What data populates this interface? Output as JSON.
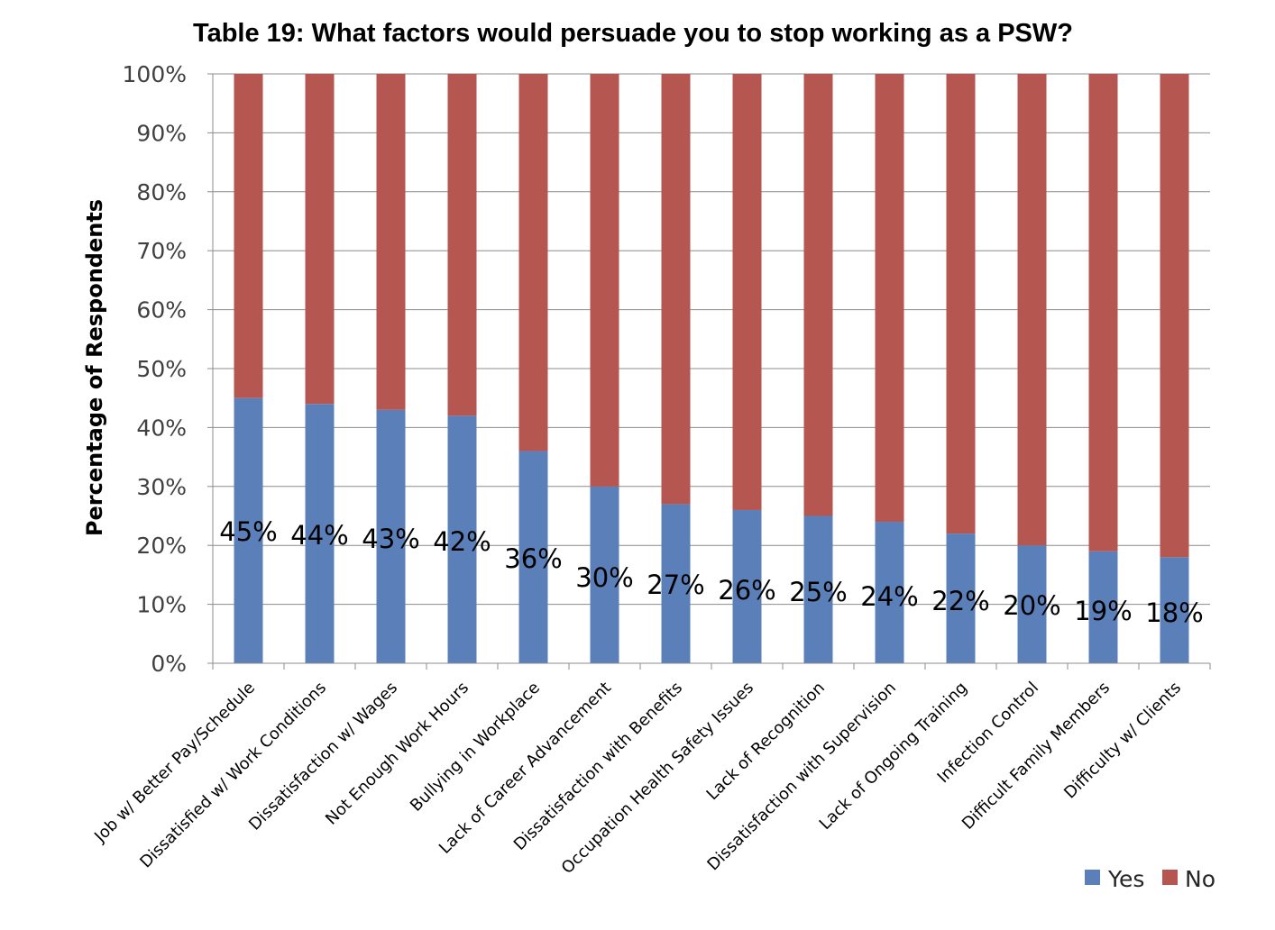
{
  "chart_data": {
    "type": "bar",
    "stacked": true,
    "title": "Table 19: What factors would persuade you to stop working as a PSW?",
    "ylabel": "Percentage of Respondents",
    "xlabel": "",
    "ylim": [
      0,
      100
    ],
    "yticks": [
      "0%",
      "10%",
      "20%",
      "30%",
      "40%",
      "50%",
      "60%",
      "70%",
      "80%",
      "90%",
      "100%"
    ],
    "grid": true,
    "legend_position": "bottom-right",
    "categories": [
      "Job w/ Better Pay/Schedule",
      "Dissatisfied w/ Work Conditions",
      "Dissatisfaction w/ Wages",
      "Not Enough Work Hours",
      "Bullying in Workplace",
      "Lack of Career Advancement",
      "Dissatisfaction with Benefits",
      "Occupation Health Safety Issues",
      "Lack of Recognition",
      "Dissatisfaction with Supervision",
      "Lack of Ongoing Training",
      "Infection Control",
      "Difficult Family Members",
      "Difficulty w/ Clients"
    ],
    "series": [
      {
        "name": "Yes",
        "color": "#5b80b9",
        "values": [
          45,
          44,
          43,
          42,
          36,
          30,
          27,
          26,
          25,
          24,
          22,
          20,
          19,
          18
        ]
      },
      {
        "name": "No",
        "color": "#b65650",
        "values": [
          55,
          56,
          57,
          58,
          64,
          70,
          73,
          74,
          75,
          76,
          78,
          80,
          81,
          82
        ]
      }
    ],
    "data_labels": [
      "45%",
      "44%",
      "43%",
      "42%",
      "36%",
      "30%",
      "27%",
      "26%",
      "25%",
      "24%",
      "22%",
      "20%",
      "19%",
      "18%"
    ]
  }
}
